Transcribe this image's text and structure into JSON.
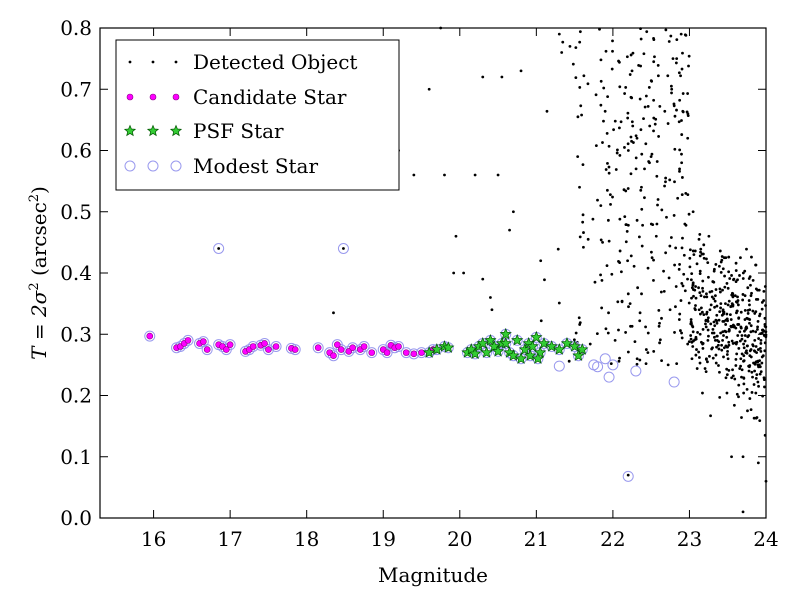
{
  "chart_data": {
    "type": "scatter",
    "title": "",
    "xlabel": "Magnitude",
    "ylabel_main": "T = 2σ",
    "ylabel_sup1": "2",
    "ylabel_paren": " (arcsec",
    "ylabel_sup2": "2",
    "ylabel_close": ")",
    "xlim": [
      15.3,
      24
    ],
    "ylim": [
      0.0,
      0.8
    ],
    "xticks": [
      16,
      17,
      18,
      19,
      20,
      21,
      22,
      23,
      24
    ],
    "xtick_labels": [
      "16",
      "17",
      "18",
      "19",
      "20",
      "21",
      "22",
      "23",
      "24"
    ],
    "yticks": [
      0.0,
      0.1,
      0.2,
      0.3,
      0.4,
      0.5,
      0.6,
      0.7,
      0.8
    ],
    "ytick_labels": [
      "0.0",
      "0.1",
      "0.2",
      "0.3",
      "0.4",
      "0.5",
      "0.6",
      "0.7",
      "0.8"
    ],
    "grid": false,
    "legend_position": "top-left",
    "colors": {
      "detected": "#000000",
      "candidate": "#ff00ff",
      "psf": "#00aa00",
      "modest": "#9999ee"
    },
    "legend": [
      {
        "series": "detected",
        "label": "Detected Object"
      },
      {
        "series": "candidate",
        "label": "Candidate Star"
      },
      {
        "series": "psf",
        "label": "PSF Star"
      },
      {
        "series": "modest",
        "label": "Modest Star"
      }
    ],
    "series": {
      "detected_fixed": [
        [
          16.85,
          0.44
        ],
        [
          18.48,
          0.44
        ],
        [
          18.35,
          0.335
        ],
        [
          19.8,
          0.56
        ],
        [
          20.2,
          0.56
        ],
        [
          19.95,
          0.46
        ],
        [
          20.05,
          0.4
        ],
        [
          19.92,
          0.4
        ],
        [
          20.3,
          0.39
        ],
        [
          20.4,
          0.36
        ],
        [
          20.42,
          0.34
        ],
        [
          20.5,
          0.56
        ],
        [
          20.55,
          0.72
        ],
        [
          20.3,
          0.72
        ],
        [
          20.8,
          0.73
        ],
        [
          21.3,
          0.79
        ],
        [
          20.65,
          0.47
        ],
        [
          20.7,
          0.5
        ],
        [
          19.75,
          0.8
        ],
        [
          19.2,
          0.6
        ],
        [
          19.4,
          0.56
        ],
        [
          19.6,
          0.7
        ],
        [
          22.2,
          0.07
        ],
        [
          23.7,
          0.01
        ],
        [
          23.55,
          0.1
        ],
        [
          23.7,
          0.1
        ],
        [
          24.0,
          0.06
        ],
        [
          23.9,
          0.09
        ]
      ],
      "detected_random_seed": 7,
      "detected_random_count": 780,
      "candidate": [
        [
          15.95,
          0.297
        ],
        [
          16.3,
          0.278
        ],
        [
          16.35,
          0.28
        ],
        [
          16.4,
          0.285
        ],
        [
          16.45,
          0.29
        ],
        [
          16.6,
          0.285
        ],
        [
          16.65,
          0.288
        ],
        [
          16.7,
          0.275
        ],
        [
          16.85,
          0.283
        ],
        [
          16.9,
          0.28
        ],
        [
          16.95,
          0.275
        ],
        [
          17.0,
          0.283
        ],
        [
          17.2,
          0.272
        ],
        [
          17.25,
          0.275
        ],
        [
          17.3,
          0.28
        ],
        [
          17.4,
          0.282
        ],
        [
          17.45,
          0.285
        ],
        [
          17.5,
          0.275
        ],
        [
          17.6,
          0.28
        ],
        [
          17.8,
          0.277
        ],
        [
          17.85,
          0.275
        ],
        [
          18.15,
          0.278
        ],
        [
          18.3,
          0.27
        ],
        [
          18.35,
          0.265
        ],
        [
          18.4,
          0.283
        ],
        [
          18.45,
          0.275
        ],
        [
          18.55,
          0.272
        ],
        [
          18.6,
          0.278
        ],
        [
          18.7,
          0.275
        ],
        [
          18.75,
          0.28
        ],
        [
          18.85,
          0.27
        ],
        [
          19.0,
          0.275
        ],
        [
          19.05,
          0.27
        ],
        [
          19.1,
          0.282
        ],
        [
          19.15,
          0.278
        ],
        [
          19.2,
          0.28
        ],
        [
          19.3,
          0.27
        ],
        [
          19.4,
          0.268
        ],
        [
          19.5,
          0.27
        ],
        [
          19.65,
          0.275
        ]
      ],
      "psf": [
        [
          19.6,
          0.27
        ],
        [
          19.7,
          0.275
        ],
        [
          19.8,
          0.28
        ],
        [
          19.85,
          0.278
        ],
        [
          20.1,
          0.27
        ],
        [
          20.15,
          0.275
        ],
        [
          20.2,
          0.268
        ],
        [
          20.25,
          0.28
        ],
        [
          20.3,
          0.285
        ],
        [
          20.35,
          0.27
        ],
        [
          20.4,
          0.29
        ],
        [
          20.45,
          0.28
        ],
        [
          20.5,
          0.272
        ],
        [
          20.55,
          0.285
        ],
        [
          20.6,
          0.3
        ],
        [
          20.65,
          0.27
        ],
        [
          20.7,
          0.265
        ],
        [
          20.75,
          0.29
        ],
        [
          20.8,
          0.26
        ],
        [
          20.85,
          0.275
        ],
        [
          20.9,
          0.285
        ],
        [
          20.95,
          0.28
        ],
        [
          21.0,
          0.295
        ],
        [
          21.05,
          0.27
        ],
        [
          21.1,
          0.285
        ],
        [
          21.2,
          0.28
        ],
        [
          21.3,
          0.275
        ],
        [
          21.4,
          0.285
        ],
        [
          21.5,
          0.28
        ],
        [
          21.55,
          0.265
        ],
        [
          21.6,
          0.275
        ],
        [
          20.6,
          0.285
        ],
        [
          20.92,
          0.265
        ],
        [
          21.02,
          0.26
        ]
      ],
      "modest_extra": [
        [
          16.85,
          0.44
        ],
        [
          18.48,
          0.44
        ],
        [
          21.3,
          0.248
        ],
        [
          21.75,
          0.25
        ],
        [
          21.8,
          0.247
        ],
        [
          21.9,
          0.26
        ],
        [
          22.0,
          0.25
        ],
        [
          22.3,
          0.24
        ],
        [
          21.95,
          0.23
        ],
        [
          22.2,
          0.068
        ],
        [
          22.8,
          0.222
        ]
      ]
    }
  }
}
